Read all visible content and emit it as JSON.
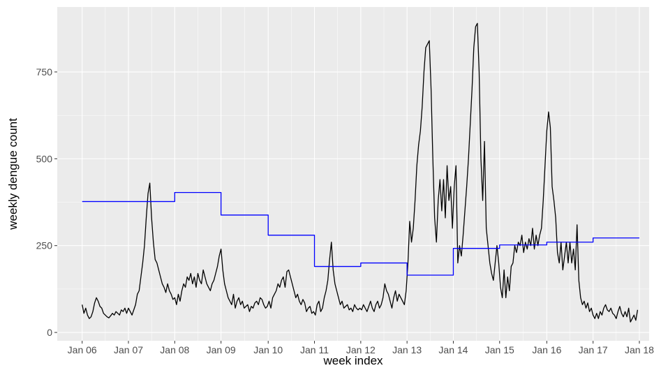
{
  "chart_data": {
    "type": "line",
    "x_label": "week index",
    "y_label": "weekly dengue count",
    "xlim": [
      -28,
      637
    ],
    "ylim": [
      -24,
      937
    ],
    "xticks": [
      {
        "value": 0,
        "label": "Jan 06"
      },
      {
        "value": 52,
        "label": "Jan 07"
      },
      {
        "value": 104,
        "label": "Jan 08"
      },
      {
        "value": 156,
        "label": "Jan 09"
      },
      {
        "value": 209,
        "label": "Jan 10"
      },
      {
        "value": 261,
        "label": "Jan 11"
      },
      {
        "value": 313,
        "label": "Jan 12"
      },
      {
        "value": 365,
        "label": "Jan 13"
      },
      {
        "value": 417,
        "label": "Jan 14"
      },
      {
        "value": 469,
        "label": "Jan 15"
      },
      {
        "value": 522,
        "label": "Jan 16"
      },
      {
        "value": 574,
        "label": "Jan 17"
      },
      {
        "value": 626,
        "label": "Jan 18"
      }
    ],
    "yticks": [
      0,
      250,
      500,
      750
    ],
    "grid": true,
    "series": [
      {
        "color": "#000000",
        "step": false,
        "x": [
          0,
          2,
          4,
          6,
          8,
          10,
          12,
          14,
          16,
          18,
          20,
          22,
          24,
          26,
          28,
          30,
          32,
          34,
          36,
          38,
          40,
          42,
          44,
          46,
          48,
          50,
          52,
          54,
          56,
          58,
          60,
          62,
          64,
          66,
          68,
          70,
          72,
          74,
          76,
          78,
          80,
          82,
          84,
          86,
          88,
          90,
          92,
          94,
          96,
          98,
          100,
          102,
          104,
          106,
          108,
          110,
          112,
          114,
          116,
          118,
          120,
          122,
          124,
          126,
          128,
          130,
          132,
          134,
          136,
          138,
          140,
          142,
          144,
          146,
          148,
          150,
          152,
          154,
          156,
          158,
          160,
          162,
          164,
          166,
          168,
          170,
          172,
          174,
          176,
          178,
          180,
          182,
          184,
          186,
          188,
          190,
          192,
          194,
          196,
          198,
          200,
          202,
          204,
          206,
          208,
          210,
          212,
          214,
          216,
          218,
          220,
          222,
          224,
          226,
          228,
          230,
          232,
          234,
          236,
          238,
          240,
          242,
          244,
          246,
          248,
          250,
          252,
          254,
          256,
          258,
          260,
          262,
          264,
          266,
          268,
          270,
          272,
          274,
          276,
          278,
          280,
          282,
          284,
          286,
          288,
          290,
          292,
          294,
          296,
          298,
          300,
          302,
          304,
          306,
          308,
          310,
          312,
          314,
          316,
          318,
          320,
          322,
          324,
          326,
          328,
          330,
          332,
          334,
          336,
          338,
          340,
          342,
          344,
          346,
          348,
          350,
          352,
          354,
          356,
          358,
          360,
          362,
          364,
          366,
          368,
          370,
          372,
          374,
          376,
          378,
          380,
          382,
          384,
          386,
          388,
          390,
          392,
          394,
          396,
          398,
          400,
          402,
          404,
          406,
          408,
          410,
          412,
          414,
          416,
          418,
          420,
          422,
          424,
          426,
          428,
          430,
          432,
          434,
          436,
          438,
          440,
          442,
          444,
          446,
          448,
          450,
          452,
          454,
          456,
          458,
          460,
          462,
          464,
          466,
          468,
          470,
          472,
          474,
          476,
          478,
          480,
          482,
          484,
          486,
          488,
          490,
          492,
          494,
          496,
          498,
          500,
          502,
          504,
          506,
          508,
          510,
          512,
          514,
          516,
          518,
          520,
          522,
          524,
          526,
          528,
          530,
          532,
          534,
          536,
          538,
          540,
          542,
          544,
          546,
          548,
          550,
          552,
          554,
          556,
          558,
          560,
          562,
          564,
          566,
          568,
          570,
          572,
          574,
          576,
          578,
          580,
          582,
          584,
          586,
          588,
          590,
          592,
          594,
          596,
          598,
          600,
          602,
          604,
          606,
          608,
          610,
          612,
          614,
          616,
          618,
          620,
          622,
          624
        ],
        "values": [
          80,
          55,
          70,
          50,
          40,
          45,
          60,
          85,
          100,
          90,
          75,
          70,
          55,
          50,
          45,
          42,
          48,
          55,
          50,
          60,
          55,
          50,
          65,
          60,
          70,
          55,
          70,
          60,
          50,
          65,
          80,
          110,
          120,
          160,
          200,
          250,
          330,
          400,
          430,
          330,
          260,
          210,
          200,
          180,
          160,
          140,
          130,
          115,
          140,
          120,
          110,
          95,
          100,
          80,
          110,
          90,
          120,
          140,
          130,
          160,
          150,
          170,
          140,
          160,
          130,
          170,
          150,
          140,
          180,
          160,
          140,
          130,
          120,
          140,
          150,
          170,
          190,
          220,
          240,
          180,
          140,
          120,
          100,
          90,
          80,
          110,
          70,
          90,
          100,
          80,
          90,
          70,
          75,
          80,
          60,
          75,
          70,
          85,
          90,
          80,
          100,
          95,
          80,
          70,
          75,
          90,
          70,
          100,
          110,
          120,
          140,
          130,
          150,
          160,
          130,
          175,
          180,
          160,
          140,
          120,
          100,
          110,
          90,
          80,
          95,
          85,
          60,
          70,
          75,
          55,
          60,
          50,
          80,
          90,
          60,
          70,
          100,
          120,
          150,
          210,
          260,
          180,
          140,
          120,
          100,
          80,
          90,
          70,
          75,
          80,
          65,
          70,
          60,
          80,
          70,
          65,
          70,
          65,
          80,
          70,
          60,
          75,
          90,
          70,
          60,
          80,
          90,
          70,
          80,
          100,
          140,
          120,
          110,
          90,
          70,
          100,
          120,
          90,
          110,
          100,
          90,
          80,
          120,
          200,
          320,
          260,
          300,
          380,
          480,
          540,
          580,
          650,
          750,
          820,
          830,
          840,
          700,
          500,
          330,
          260,
          380,
          440,
          350,
          440,
          330,
          480,
          380,
          420,
          300,
          420,
          480,
          200,
          250,
          220,
          280,
          350,
          420,
          500,
          600,
          700,
          820,
          880,
          890,
          750,
          500,
          380,
          550,
          300,
          250,
          200,
          170,
          150,
          200,
          250,
          200,
          130,
          100,
          180,
          100,
          160,
          120,
          190,
          200,
          250,
          230,
          260,
          250,
          280,
          230,
          260,
          240,
          270,
          250,
          300,
          240,
          280,
          250,
          280,
          300,
          380,
          480,
          580,
          635,
          590,
          420,
          380,
          330,
          230,
          200,
          260,
          180,
          220,
          260,
          200,
          260,
          200,
          240,
          180,
          310,
          150,
          100,
          80,
          90,
          70,
          85,
          60,
          70,
          50,
          40,
          55,
          40,
          60,
          50,
          70,
          80,
          65,
          60,
          70,
          55,
          50,
          40,
          60,
          75,
          55,
          45,
          60,
          45,
          70,
          30,
          40,
          50,
          35,
          65
        ]
      },
      {
        "color": "#0000ff",
        "step": true,
        "x": [
          0,
          52,
          104,
          156,
          209,
          261,
          313,
          365,
          417,
          469,
          522,
          574,
          626
        ],
        "values": [
          377,
          377,
          403,
          338,
          280,
          190,
          200,
          165,
          242,
          252,
          260,
          272,
          272
        ]
      }
    ]
  }
}
